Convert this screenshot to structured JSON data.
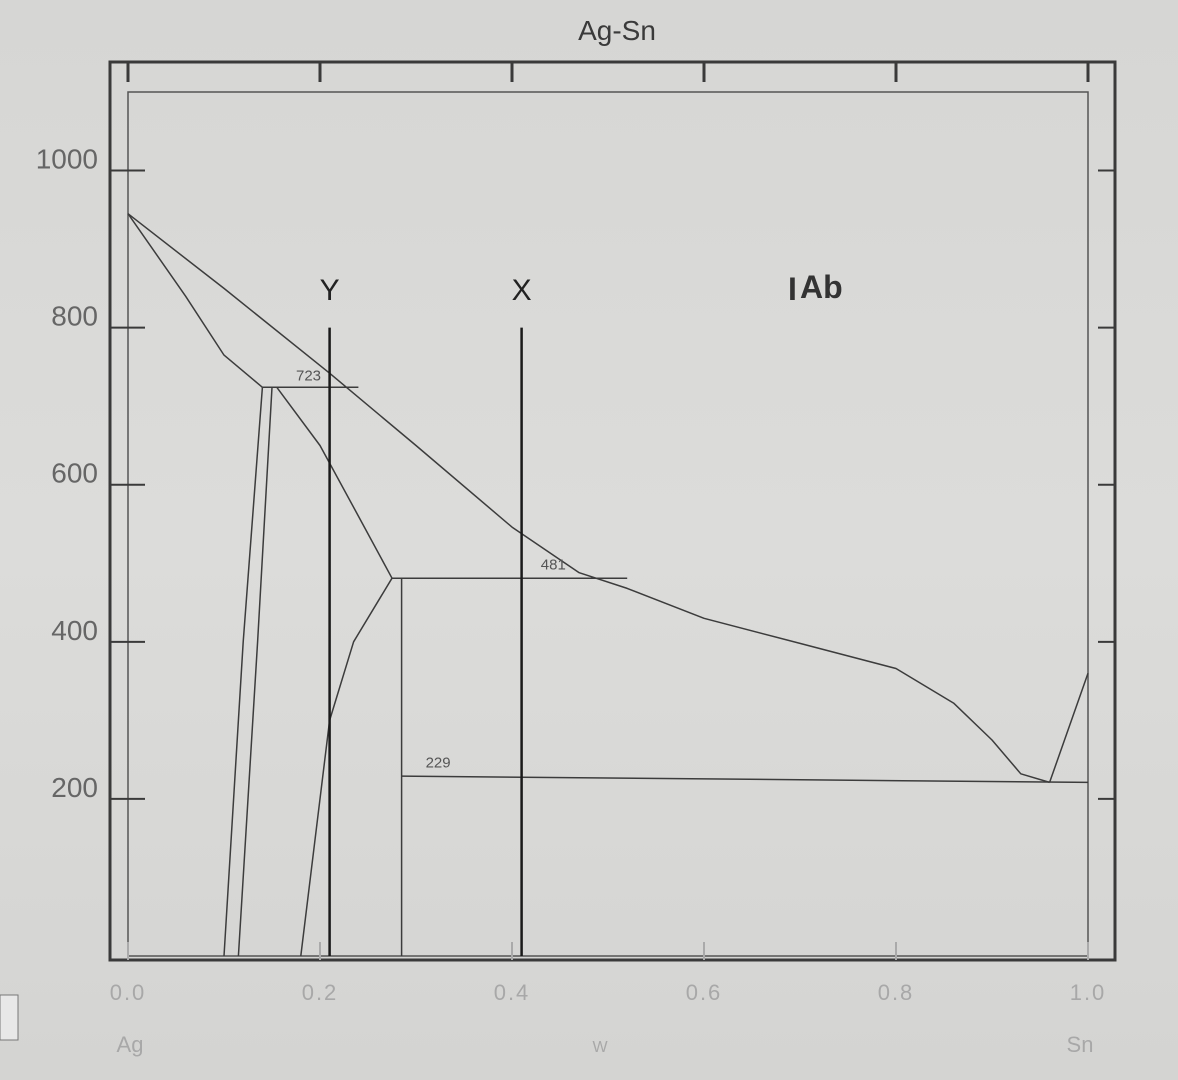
{
  "chart_data": {
    "type": "line",
    "title": "Ag-Sn",
    "xlabel": "W",
    "xlim": [
      0,
      1
    ],
    "ylim": [
      0,
      1100
    ],
    "x_ticks": [
      {
        "value": 0.0,
        "label": "0.0"
      },
      {
        "value": 0.2,
        "label": "0.2"
      },
      {
        "value": 0.4,
        "label": "0.4"
      },
      {
        "value": 0.6,
        "label": "0.6"
      },
      {
        "value": 0.8,
        "label": "0.8"
      },
      {
        "value": 1.0,
        "label": "1.0"
      }
    ],
    "y_ticks": [
      {
        "value": 200,
        "label": "200"
      },
      {
        "value": 400,
        "label": "400"
      },
      {
        "value": 600,
        "label": "600"
      },
      {
        "value": 800,
        "label": "800"
      },
      {
        "value": 1000,
        "label": "1000"
      }
    ],
    "x_end_labels": {
      "left": "Ag",
      "right": "Sn"
    },
    "legend_text": "Ab",
    "series": [
      {
        "id": "liquidus",
        "points": [
          [
            0.0,
            945
          ],
          [
            0.1,
            850
          ],
          [
            0.21,
            742
          ],
          [
            0.3,
            650
          ],
          [
            0.4,
            546
          ],
          [
            0.47,
            488
          ],
          [
            0.52,
            468
          ],
          [
            0.6,
            430
          ],
          [
            0.7,
            398
          ],
          [
            0.8,
            366
          ],
          [
            0.86,
            322
          ],
          [
            0.9,
            275
          ],
          [
            0.93,
            232
          ],
          [
            0.96,
            221
          ]
        ]
      },
      {
        "id": "alpha-solidus",
        "points": [
          [
            0.0,
            945
          ],
          [
            0.06,
            840
          ],
          [
            0.1,
            765
          ],
          [
            0.14,
            724
          ]
        ]
      },
      {
        "id": "alpha-solvus-a",
        "points": [
          [
            0.14,
            724
          ],
          [
            0.12,
            400
          ],
          [
            0.1,
            0
          ]
        ]
      },
      {
        "id": "alpha-solvus-b",
        "points": [
          [
            0.15,
            724
          ],
          [
            0.135,
            400
          ],
          [
            0.115,
            0
          ]
        ]
      },
      {
        "id": "zeta-upper",
        "points": [
          [
            0.155,
            724
          ],
          [
            0.2,
            650
          ],
          [
            0.24,
            560
          ],
          [
            0.275,
            481
          ]
        ]
      },
      {
        "id": "zeta-lower",
        "points": [
          [
            0.275,
            481
          ],
          [
            0.235,
            400
          ],
          [
            0.21,
            300
          ],
          [
            0.195,
            150
          ],
          [
            0.18,
            0
          ]
        ]
      },
      {
        "id": "eps-left",
        "points": [
          [
            0.285,
            481
          ],
          [
            0.285,
            0
          ]
        ]
      },
      {
        "id": "sn-liquidus",
        "points": [
          [
            0.96,
            221
          ],
          [
            1.0,
            360
          ]
        ]
      },
      {
        "id": "peritectic-723",
        "points": [
          [
            0.14,
            724
          ],
          [
            0.24,
            724
          ]
        ]
      },
      {
        "id": "peritectic-481",
        "points": [
          [
            0.275,
            481
          ],
          [
            0.52,
            481
          ]
        ]
      },
      {
        "id": "eutectic-229",
        "points": [
          [
            0.285,
            229
          ],
          [
            1.0,
            221
          ]
        ]
      },
      {
        "id": "line-X",
        "points": [
          [
            0.41,
            0
          ],
          [
            0.41,
            800
          ]
        ]
      },
      {
        "id": "line-Y",
        "points": [
          [
            0.21,
            0
          ],
          [
            0.21,
            800
          ]
        ]
      }
    ],
    "annotations": [
      {
        "text": "723",
        "x": 0.175,
        "y": 733
      },
      {
        "text": "481",
        "x": 0.43,
        "y": 492
      },
      {
        "text": "229",
        "x": 0.31,
        "y": 240
      },
      {
        "text": "X",
        "x": 0.41,
        "y": 835
      },
      {
        "text": "Y",
        "x": 0.21,
        "y": 835
      }
    ]
  },
  "colors": {
    "background": "#d9d9d7",
    "frame": "#3a3a3a",
    "curve": "#3c3c3c",
    "vertical_lines": "#1a1a1a"
  }
}
